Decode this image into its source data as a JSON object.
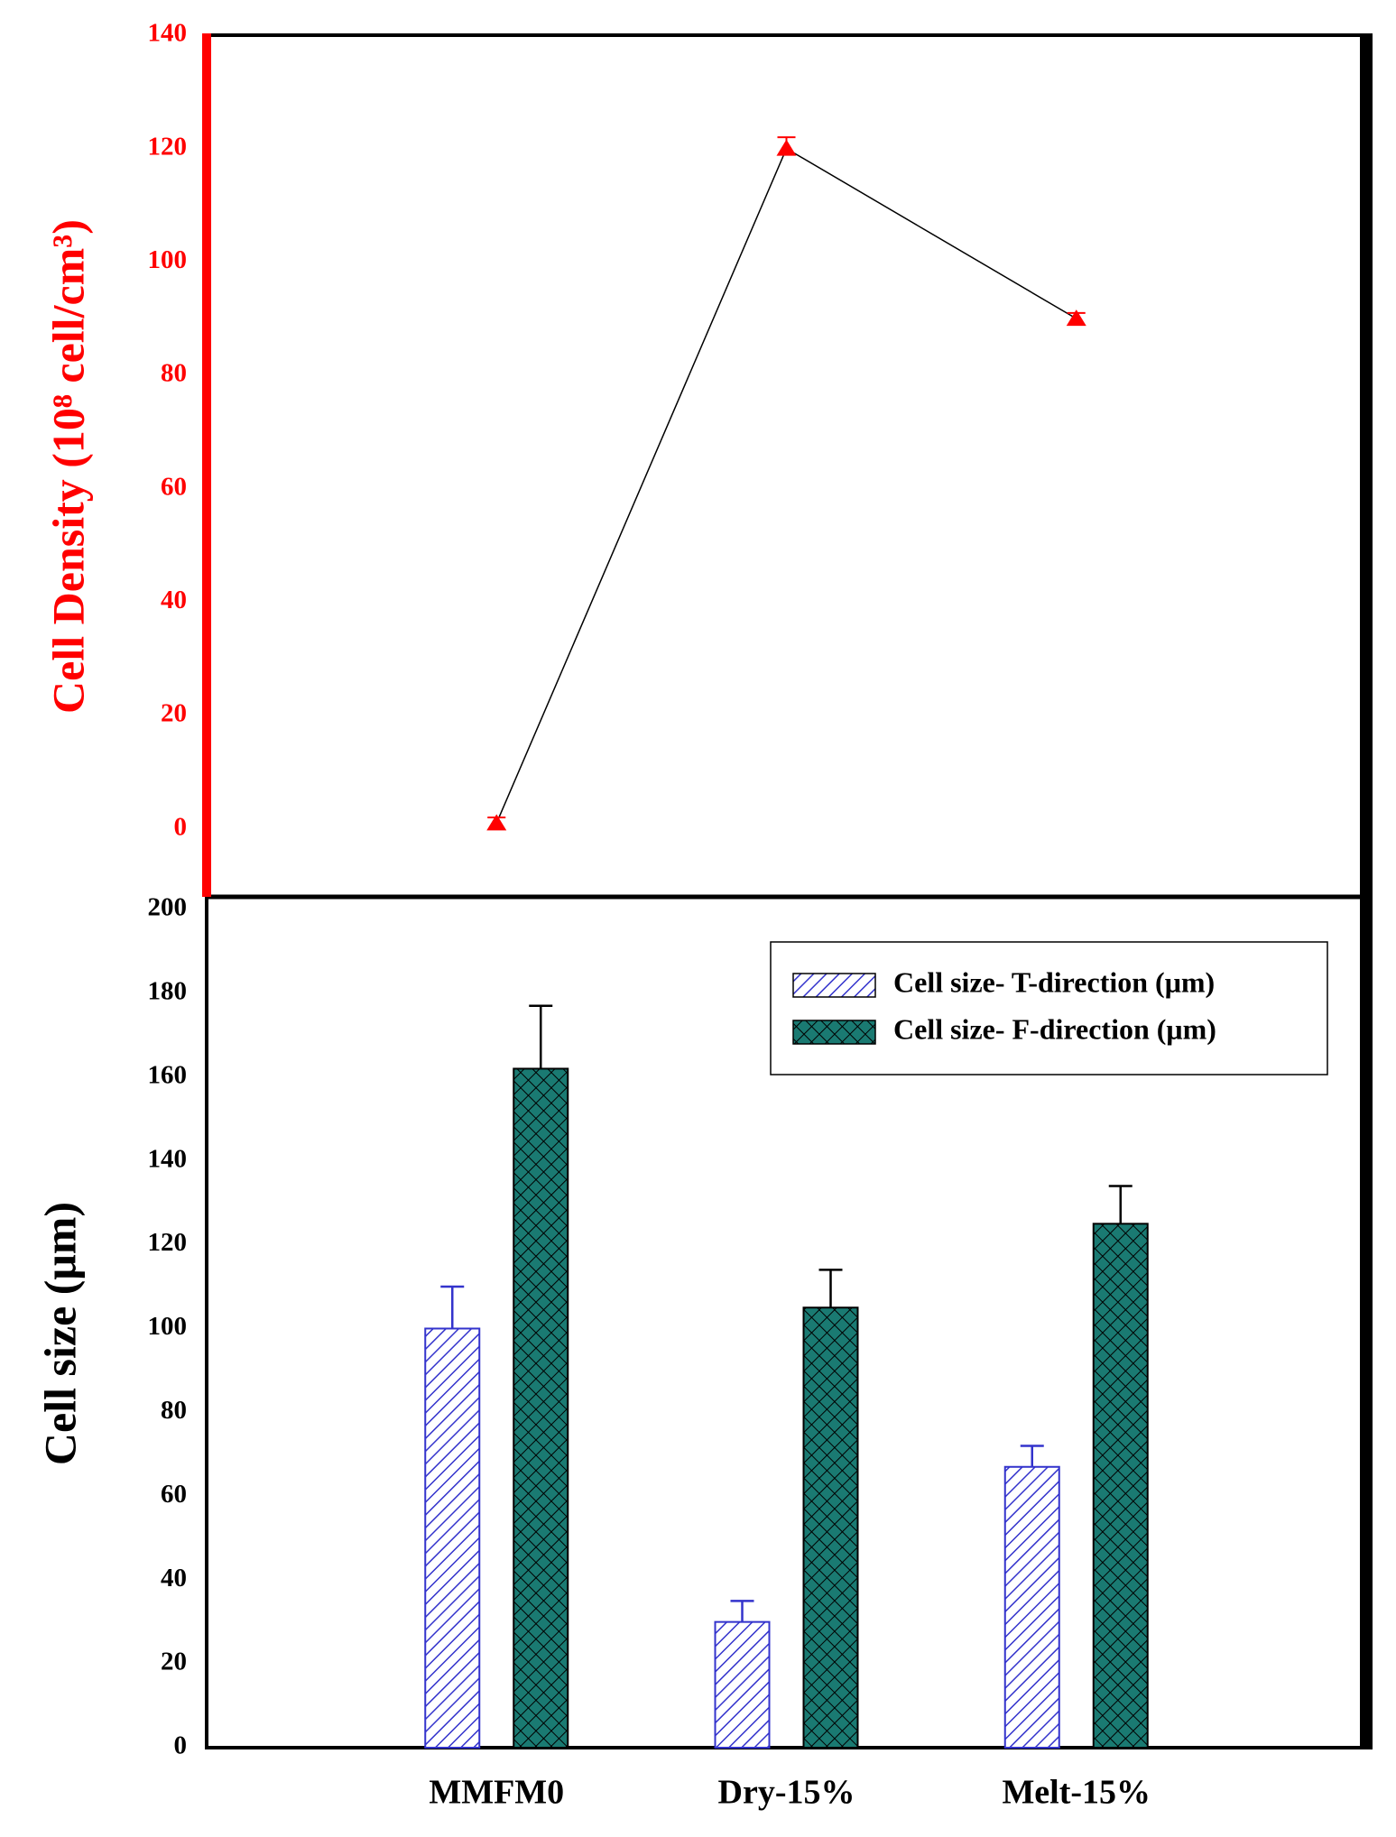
{
  "chart_data": [
    {
      "type": "line",
      "y_label": "Cell Density (10⁸ cell/cm³)",
      "axis_color": "#ff0000",
      "series": [
        {
          "color": "#000000",
          "marker_color": "#ff0000",
          "values": [
            1,
            120,
            90
          ],
          "errors": [
            1,
            2,
            1
          ]
        }
      ],
      "ylim": [
        -12,
        140
      ],
      "yticks": [
        0,
        20,
        40,
        60,
        80,
        100,
        120,
        140
      ]
    },
    {
      "type": "bar",
      "y_label": "Cell size (μm)",
      "categories": [
        "MMFM0",
        "Dry-15%",
        "Melt-15%"
      ],
      "series": [
        {
          "name": "Cell size- T-direction (μm)",
          "color": "#3333cc",
          "pattern": "hatch",
          "values": [
            100,
            30,
            67
          ],
          "errors": [
            10,
            5,
            5
          ]
        },
        {
          "name": "Cell size- F-direction (μm)",
          "color": "#1a7a72",
          "pattern": "cross",
          "values": [
            162,
            105,
            125
          ],
          "errors": [
            15,
            9,
            9
          ]
        }
      ],
      "ylim": [
        0,
        203
      ],
      "yticks": [
        0,
        20,
        40,
        60,
        80,
        100,
        120,
        140,
        160,
        180,
        200
      ],
      "legend": "upper right"
    }
  ]
}
